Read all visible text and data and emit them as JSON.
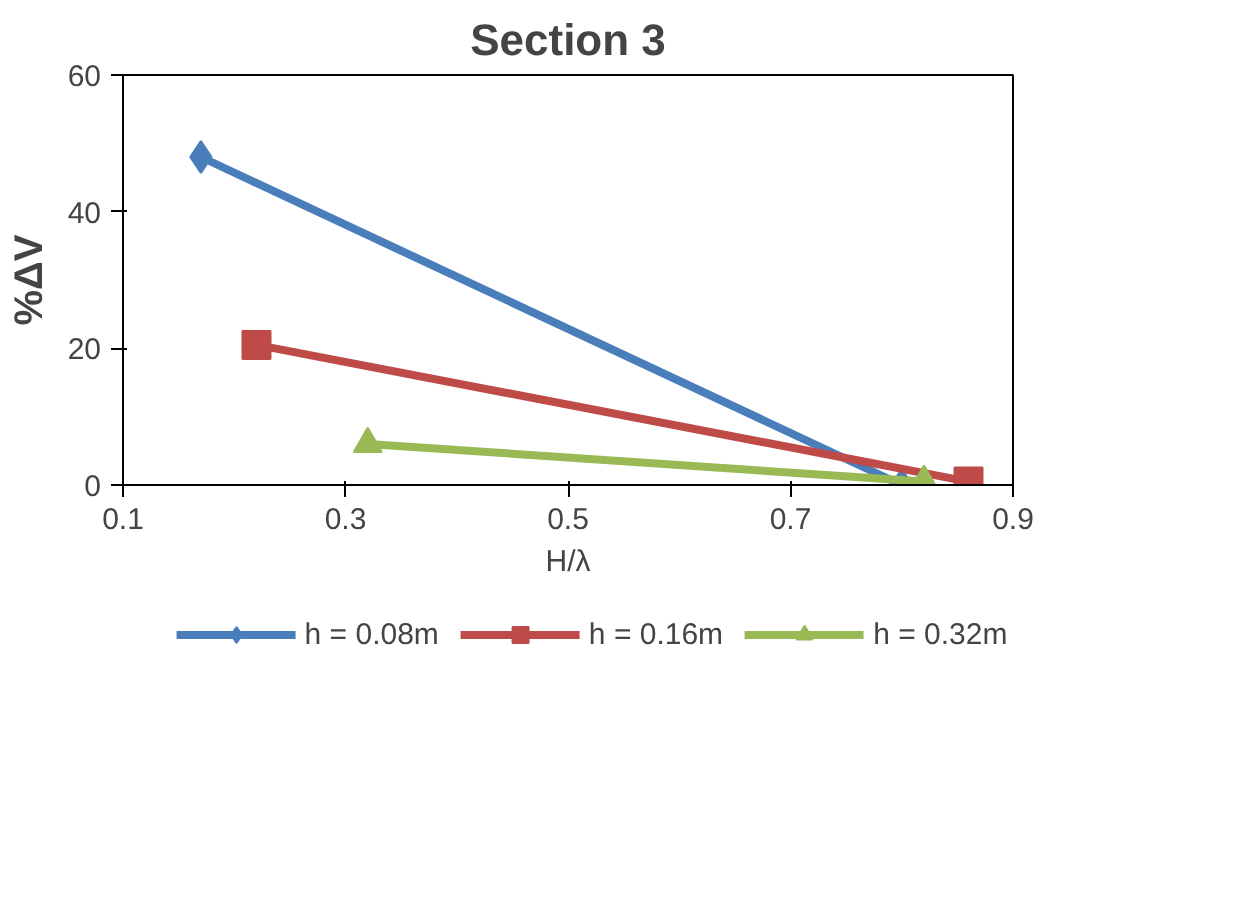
{
  "chart_data": {
    "type": "line",
    "title": "Section 3",
    "xlabel": "H/λ",
    "ylabel": "%ΔV",
    "xlim": [
      0.1,
      0.9
    ],
    "xticks": [
      0.1,
      0.3,
      0.5,
      0.7,
      0.9
    ],
    "ylim": [
      0,
      60
    ],
    "yticks": [
      0,
      20,
      40,
      60
    ],
    "grid": false,
    "legend": "bottom",
    "series": [
      {
        "name": "h = 0.08m",
        "color": "#4a7ebb",
        "marker": "diamond",
        "x": [
          0.17,
          0.8
        ],
        "values": [
          48,
          0
        ]
      },
      {
        "name": "h = 0.16m",
        "color": "#be4b48",
        "marker": "square",
        "x": [
          0.22,
          0.86
        ],
        "values": [
          20.5,
          0.5
        ]
      },
      {
        "name": "h = 0.32m",
        "color": "#98b954",
        "marker": "triangle",
        "x": [
          0.32,
          0.82
        ],
        "values": [
          6,
          0.5
        ]
      }
    ]
  }
}
